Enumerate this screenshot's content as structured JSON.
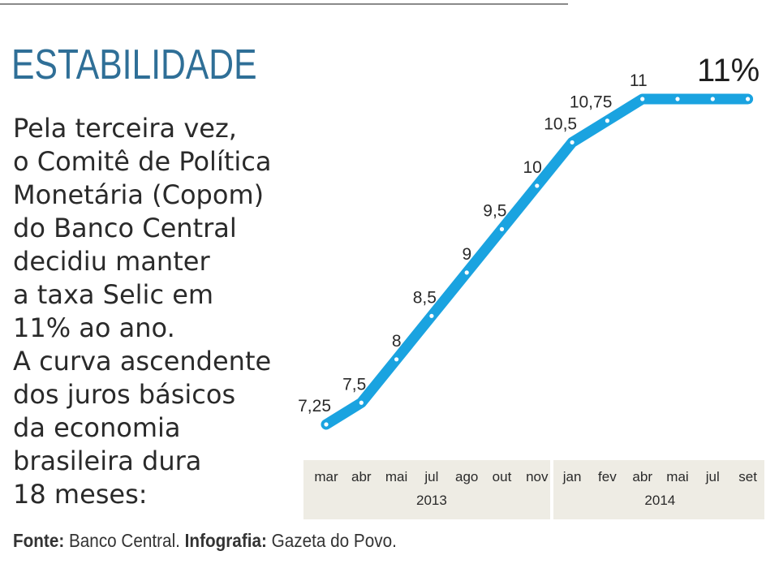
{
  "header": {
    "title": "ESTABILIDADE"
  },
  "description": "Pela terceira vez,\no Comitê de Política\nMonetária (Copom)\ndo Banco Central\ndecidiu manter\na taxa Selic em\n11% ao ano.\nA curva ascendente\ndos juros básicos\nda economia\nbrasileira dura\n18 meses:",
  "footer": {
    "source_label": "Fonte:",
    "source_value": "Banco Central.",
    "credit_label": "Infografia:",
    "credit_value": "Gazeta do Povo."
  },
  "colors": {
    "line": "#1aa3e0",
    "title": "#2f6f97",
    "axis_band": "#eeece4"
  },
  "chart_data": {
    "type": "line",
    "categories": [
      "mar",
      "abr",
      "mai",
      "jul",
      "ago",
      "out",
      "nov",
      "jan",
      "fev",
      "abr",
      "mai",
      "jul",
      "set"
    ],
    "year_groups": [
      {
        "label": "2013",
        "start": 0,
        "end": 6
      },
      {
        "label": "2014",
        "start": 7,
        "end": 12
      }
    ],
    "series": [
      {
        "values": [
          7.25,
          7.5,
          8,
          8.5,
          9,
          9.5,
          10,
          10.5,
          10.75,
          11,
          11,
          11,
          11
        ]
      }
    ],
    "point_labels": [
      "7,25",
      "7,5",
      "8",
      "8,5",
      "9",
      "9,5",
      "10",
      "10,5",
      "10,75",
      "11",
      "",
      "",
      ""
    ],
    "highlight_label": "11%",
    "ylim": [
      7.25,
      11
    ],
    "grid": false
  }
}
